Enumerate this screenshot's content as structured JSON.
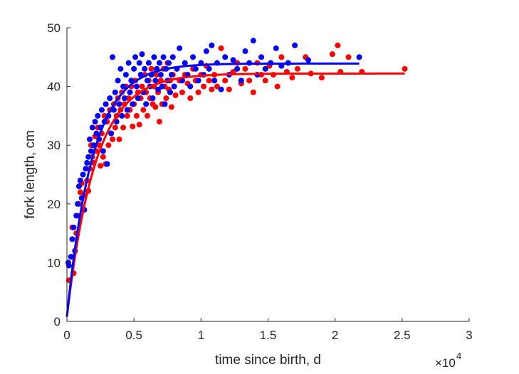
{
  "chart_data": {
    "type": "scatter",
    "xlabel": "time since birth, d",
    "ylabel": "fork length, cm",
    "x_exponent_label": "×10",
    "x_exponent_power": "4",
    "x_exponent": 10000,
    "xlim": [
      0,
      30000
    ],
    "ylim": [
      0,
      50
    ],
    "xticks": [
      0,
      5000,
      10000,
      15000,
      20000,
      25000,
      30000
    ],
    "xtick_labels": [
      "0",
      "0.5",
      "1",
      "1.5",
      "2",
      "2.5",
      "3"
    ],
    "yticks": [
      0,
      10,
      20,
      30,
      40,
      50
    ],
    "ytick_labels": [
      "0",
      "10",
      "20",
      "30",
      "40",
      "50"
    ],
    "grid": false,
    "legend": "none",
    "series": [
      {
        "color": "#ff0000",
        "fit": {
          "model": "von Bertalanffy",
          "Linf": 42.2,
          "k": 0.00047,
          "x_end": 25200
        },
        "points": [
          [
            150,
            7
          ],
          [
            400,
            16
          ],
          [
            500,
            8.2
          ],
          [
            700,
            15
          ],
          [
            800,
            18
          ],
          [
            900,
            20
          ],
          [
            1000,
            22
          ],
          [
            1100,
            23.5
          ],
          [
            1300,
            21.5
          ],
          [
            1500,
            24
          ],
          [
            1600,
            22.2
          ],
          [
            1700,
            26
          ],
          [
            1800,
            30
          ],
          [
            1900,
            28
          ],
          [
            2000,
            27
          ],
          [
            2100,
            31.5
          ],
          [
            2200,
            29
          ],
          [
            2300,
            33
          ],
          [
            2400,
            30
          ],
          [
            2500,
            26.5
          ],
          [
            2600,
            32
          ],
          [
            2700,
            28
          ],
          [
            2800,
            35
          ],
          [
            2900,
            26.8
          ],
          [
            3000,
            34
          ],
          [
            3100,
            30
          ],
          [
            3200,
            36
          ],
          [
            3300,
            32
          ],
          [
            3400,
            31
          ],
          [
            3500,
            37
          ],
          [
            3600,
            33
          ],
          [
            3700,
            35
          ],
          [
            3800,
            38
          ],
          [
            3900,
            31
          ],
          [
            4000,
            36
          ],
          [
            4100,
            39
          ],
          [
            4200,
            33
          ],
          [
            4300,
            37
          ],
          [
            4400,
            40
          ],
          [
            4500,
            35
          ],
          [
            4600,
            38
          ],
          [
            4700,
            36
          ],
          [
            4800,
            40
          ],
          [
            4900,
            33.2
          ],
          [
            5000,
            37
          ],
          [
            5100,
            41
          ],
          [
            5200,
            35
          ],
          [
            5300,
            39
          ],
          [
            5400,
            33.5
          ],
          [
            5500,
            38
          ],
          [
            5600,
            40
          ],
          [
            5700,
            36
          ],
          [
            5800,
            42
          ],
          [
            5900,
            39
          ],
          [
            6000,
            35
          ],
          [
            6100,
            41
          ],
          [
            6200,
            38
          ],
          [
            6300,
            43
          ],
          [
            6400,
            37
          ],
          [
            6500,
            40
          ],
          [
            6600,
            36.5
          ],
          [
            6700,
            42
          ],
          [
            6800,
            39
          ],
          [
            6900,
            34
          ],
          [
            7000,
            41
          ],
          [
            7100,
            37
          ],
          [
            7200,
            43
          ],
          [
            7300,
            40
          ],
          [
            7400,
            38
          ],
          [
            7500,
            44
          ],
          [
            7600,
            39.5
          ],
          [
            7700,
            41
          ],
          [
            7800,
            36.5
          ],
          [
            7900,
            42
          ],
          [
            8000,
            40
          ],
          [
            8100,
            38.5
          ],
          [
            8200,
            43
          ],
          [
            8400,
            41
          ],
          [
            8600,
            39
          ],
          [
            8800,
            42
          ],
          [
            9000,
            40.5
          ],
          [
            9200,
            38
          ],
          [
            9400,
            43
          ],
          [
            9600,
            41
          ],
          [
            9800,
            39
          ],
          [
            10000,
            42
          ],
          [
            10200,
            40
          ],
          [
            10400,
            43.5
          ],
          [
            10600,
            41
          ],
          [
            10800,
            39.5
          ],
          [
            11000,
            42
          ],
          [
            11200,
            40
          ],
          [
            11500,
            46.5
          ],
          [
            11800,
            41
          ],
          [
            12100,
            39.5
          ],
          [
            12400,
            42.5
          ],
          [
            12700,
            44
          ],
          [
            13000,
            40.5
          ],
          [
            13300,
            43
          ],
          [
            13600,
            41
          ],
          [
            13900,
            39
          ],
          [
            14200,
            44
          ],
          [
            14500,
            42
          ],
          [
            14800,
            41
          ],
          [
            15100,
            43.5
          ],
          [
            15400,
            42
          ],
          [
            15700,
            40
          ],
          [
            16000,
            45
          ],
          [
            16400,
            42.5
          ],
          [
            16800,
            41.5
          ],
          [
            17200,
            43
          ],
          [
            17800,
            45
          ],
          [
            18200,
            42.2
          ],
          [
            19000,
            41.5
          ],
          [
            19800,
            45.5
          ],
          [
            20200,
            47
          ],
          [
            20400,
            42.5
          ],
          [
            21000,
            45
          ],
          [
            22000,
            42.5
          ],
          [
            25200,
            43
          ]
        ]
      },
      {
        "color": "#0000ff",
        "fit": {
          "model": "von Bertalanffy",
          "Linf": 43.9,
          "k": 0.00052,
          "x_end": 21800
        },
        "points": [
          [
            100,
            10
          ],
          [
            150,
            9.5
          ],
          [
            300,
            11
          ],
          [
            400,
            14
          ],
          [
            500,
            16
          ],
          [
            600,
            12
          ],
          [
            700,
            18
          ],
          [
            800,
            20
          ],
          [
            900,
            23
          ],
          [
            1000,
            24
          ],
          [
            1100,
            21
          ],
          [
            1200,
            25
          ],
          [
            1300,
            19
          ],
          [
            1400,
            26
          ],
          [
            1500,
            27
          ],
          [
            1600,
            28
          ],
          [
            1700,
            31
          ],
          [
            1800,
            29
          ],
          [
            1900,
            33
          ],
          [
            2000,
            30
          ],
          [
            2100,
            34
          ],
          [
            2200,
            32
          ],
          [
            2300,
            35
          ],
          [
            2400,
            31
          ],
          [
            2500,
            33
          ],
          [
            2600,
            36
          ],
          [
            2700,
            29
          ],
          [
            2800,
            34
          ],
          [
            2900,
            37
          ],
          [
            3000,
            26.8
          ],
          [
            3100,
            35
          ],
          [
            3200,
            38
          ],
          [
            3300,
            32
          ],
          [
            3400,
            45
          ],
          [
            3500,
            36
          ],
          [
            3600,
            39
          ],
          [
            3700,
            34
          ],
          [
            3800,
            41
          ],
          [
            3900,
            37
          ],
          [
            4000,
            43
          ],
          [
            4100,
            35
          ],
          [
            4200,
            40
          ],
          [
            4300,
            38
          ],
          [
            4400,
            42
          ],
          [
            4500,
            36
          ],
          [
            4600,
            44
          ],
          [
            4700,
            39
          ],
          [
            4800,
            41
          ],
          [
            4900,
            37
          ],
          [
            5000,
            43
          ],
          [
            5100,
            45
          ],
          [
            5200,
            40
          ],
          [
            5300,
            38
          ],
          [
            5400,
            44
          ],
          [
            5500,
            42
          ],
          [
            5600,
            45.5
          ],
          [
            5700,
            39
          ],
          [
            5800,
            43
          ],
          [
            5900,
            37
          ],
          [
            6000,
            41
          ],
          [
            6100,
            44
          ],
          [
            6200,
            40
          ],
          [
            6300,
            42
          ],
          [
            6400,
            38
          ],
          [
            6500,
            45
          ],
          [
            6600,
            41
          ],
          [
            6700,
            43
          ],
          [
            6800,
            39.5
          ],
          [
            6900,
            44
          ],
          [
            7000,
            42
          ],
          [
            7100,
            40
          ],
          [
            7200,
            45
          ],
          [
            7300,
            37
          ],
          [
            7400,
            43
          ],
          [
            7500,
            41
          ],
          [
            7600,
            44
          ],
          [
            7700,
            39
          ],
          [
            7800,
            42
          ],
          [
            7900,
            45
          ],
          [
            8000,
            40
          ],
          [
            8200,
            43
          ],
          [
            8400,
            46.5
          ],
          [
            8600,
            41
          ],
          [
            8800,
            44
          ],
          [
            9000,
            42
          ],
          [
            9200,
            40
          ],
          [
            9400,
            45
          ],
          [
            9600,
            43
          ],
          [
            9800,
            41
          ],
          [
            10000,
            44
          ],
          [
            10200,
            42
          ],
          [
            10400,
            46
          ],
          [
            10600,
            43
          ],
          [
            10800,
            47
          ],
          [
            11000,
            41
          ],
          [
            11200,
            44
          ],
          [
            11500,
            39.5
          ],
          [
            11800,
            45
          ],
          [
            12100,
            42
          ],
          [
            12400,
            44.5
          ],
          [
            12700,
            43
          ],
          [
            13000,
            41
          ],
          [
            13300,
            46
          ],
          [
            13600,
            44
          ],
          [
            13900,
            47.8
          ],
          [
            14200,
            42
          ],
          [
            14500,
            45
          ],
          [
            14800,
            43
          ],
          [
            15200,
            44
          ],
          [
            15600,
            46.5
          ],
          [
            16000,
            43.5
          ],
          [
            16500,
            44
          ],
          [
            17000,
            47
          ],
          [
            18000,
            44.5
          ],
          [
            21800,
            45
          ]
        ]
      }
    ]
  }
}
